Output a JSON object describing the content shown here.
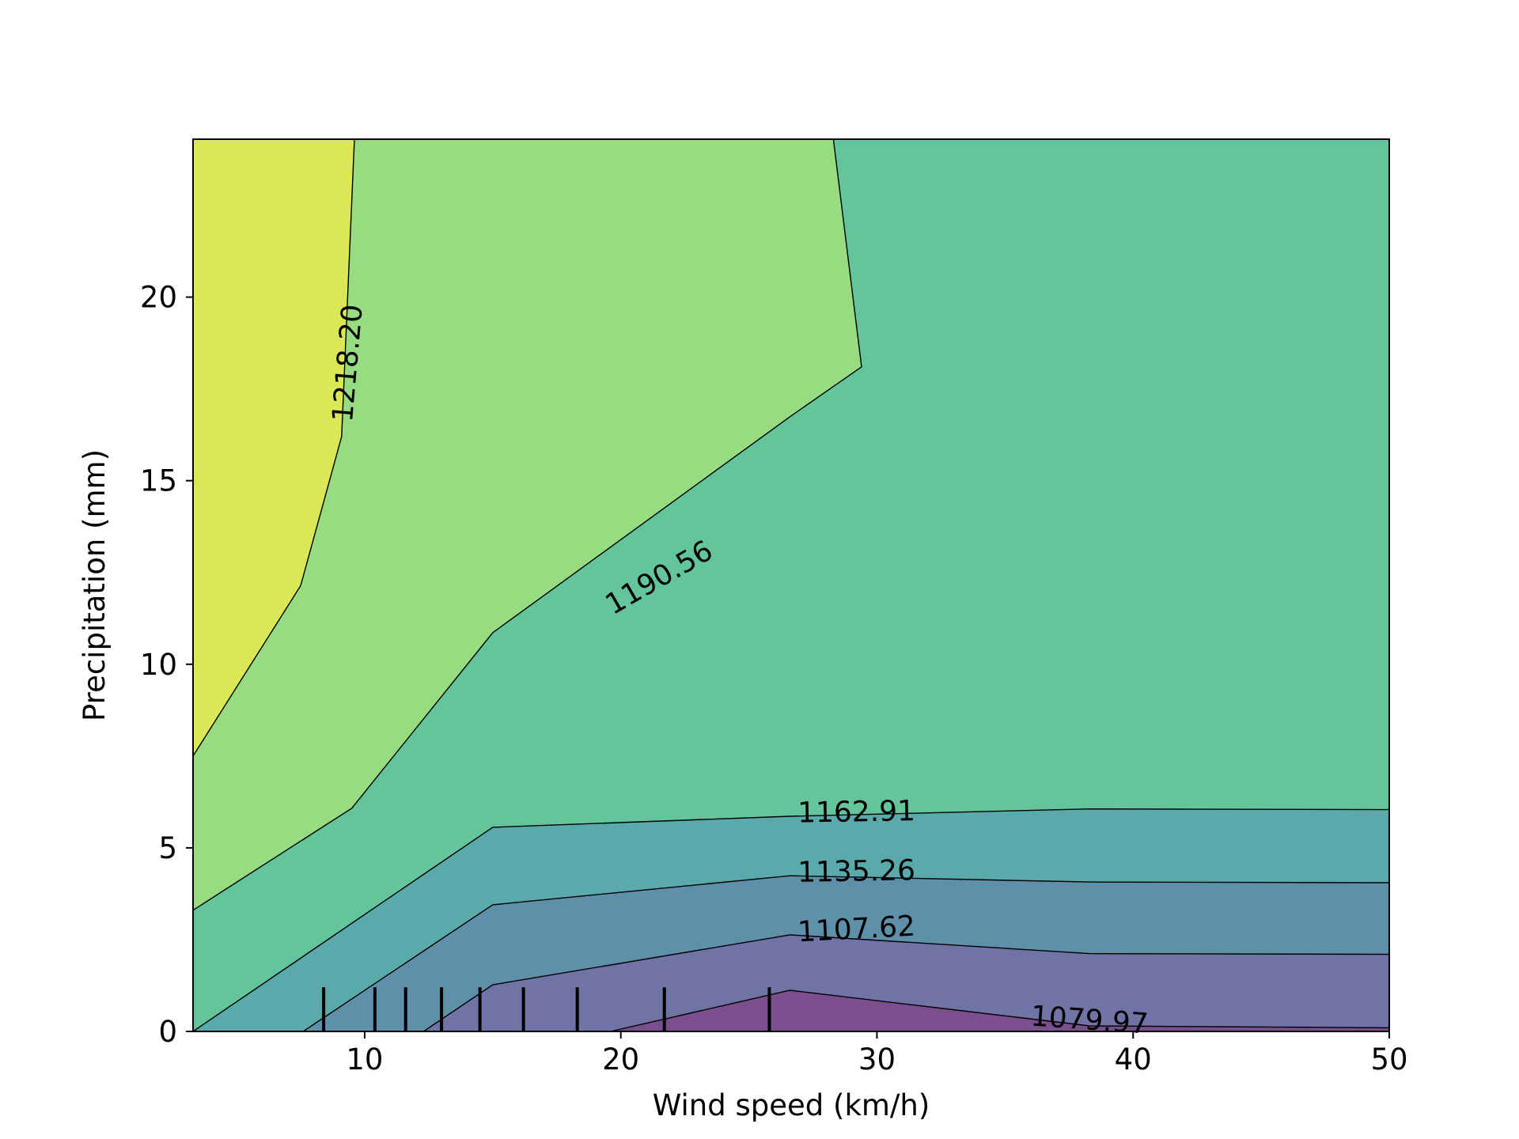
{
  "chart_data": {
    "type": "contour",
    "title": "",
    "xlabel": "Wind speed (km/h)",
    "ylabel": "Precipitation (mm)",
    "xlim": [
      3.3,
      50
    ],
    "ylim": [
      0,
      24.3
    ],
    "x_ticks": [
      10,
      20,
      30,
      40,
      50
    ],
    "y_ticks": [
      0,
      5,
      10,
      15,
      20
    ],
    "grid": false,
    "legend": "none",
    "fill_colors": [
      "#7b4f8e",
      "#6f73a5",
      "#5f90a9",
      "#5aaaab",
      "#64c59d",
      "#98dc81",
      "#dbe755"
    ],
    "levels": [
      "1079.97",
      "1107.62",
      "1135.26",
      "1162.91",
      "1190.56",
      "1218.20"
    ],
    "contours": [
      {
        "label": "1079.97",
        "points": [
          [
            19.6,
            0
          ],
          [
            26.6,
            1.12
          ],
          [
            38.3,
            0.15
          ],
          [
            50,
            0.1
          ]
        ]
      },
      {
        "label": "1107.62",
        "points": [
          [
            12.3,
            0
          ],
          [
            15.0,
            1.27
          ],
          [
            26.6,
            2.63
          ],
          [
            38.3,
            2.12
          ],
          [
            50,
            2.1
          ]
        ]
      },
      {
        "label": "1135.26",
        "points": [
          [
            7.6,
            0
          ],
          [
            15.0,
            3.45
          ],
          [
            26.6,
            4.24
          ],
          [
            38.3,
            4.07
          ],
          [
            50,
            4.05
          ]
        ]
      },
      {
        "label": "1162.91",
        "points": [
          [
            3.3,
            0
          ],
          [
            15.0,
            5.56
          ],
          [
            26.6,
            5.86
          ],
          [
            38.3,
            6.06
          ],
          [
            50,
            6.04
          ]
        ]
      },
      {
        "label": "1190.56",
        "points": [
          [
            3.3,
            3.3
          ],
          [
            9.5,
            6.08
          ],
          [
            15.0,
            10.86
          ],
          [
            26.6,
            16.74
          ],
          [
            29.4,
            18.1
          ],
          [
            28.3,
            24.3
          ]
        ]
      },
      {
        "label": "1218.20",
        "points": [
          [
            3.3,
            7.5
          ],
          [
            7.5,
            12.14
          ],
          [
            9.1,
            16.2
          ],
          [
            9.6,
            24.3
          ]
        ]
      }
    ],
    "rug_x": [
      8.4,
      10.4,
      11.6,
      13.0,
      14.5,
      16.2,
      18.3,
      21.7,
      25.8
    ],
    "rug_height": 1.2
  }
}
